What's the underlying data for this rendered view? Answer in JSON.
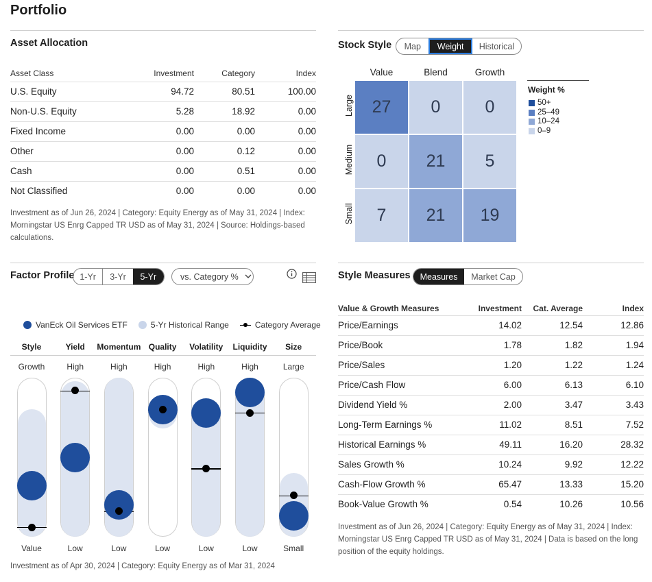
{
  "title": "Portfolio",
  "asset_allocation": {
    "heading": "Asset Allocation",
    "columns": [
      "Asset Class",
      "Investment",
      "Category",
      "Index"
    ],
    "rows": [
      {
        "label": "U.S. Equity",
        "investment": "94.72",
        "category": "80.51",
        "index": "100.00"
      },
      {
        "label": "Non-U.S. Equity",
        "investment": "5.28",
        "category": "18.92",
        "index": "0.00"
      },
      {
        "label": "Fixed Income",
        "investment": "0.00",
        "category": "0.00",
        "index": "0.00"
      },
      {
        "label": "Other",
        "investment": "0.00",
        "category": "0.12",
        "index": "0.00"
      },
      {
        "label": "Cash",
        "investment": "0.00",
        "category": "0.51",
        "index": "0.00"
      },
      {
        "label": "Not Classified",
        "investment": "0.00",
        "category": "0.00",
        "index": "0.00"
      }
    ],
    "footnote_1": "Investment as of Jun 26, 2024 | Category: Equity Energy as of May 31, 2024 | Index:",
    "footnote_2": "Morningstar US Enrg Capped TR USD as of May 31, 2024 | Source: Holdings-based",
    "footnote_3": "calculations."
  },
  "stock_style": {
    "heading": "Stock Style",
    "tabs": [
      "Map",
      "Weight",
      "Historical"
    ],
    "active_tab": "Weight",
    "col_labels": [
      "Value",
      "Blend",
      "Growth"
    ],
    "row_labels": [
      "Large",
      "Medium",
      "Small"
    ],
    "cells": [
      [
        "27",
        "0",
        "0"
      ],
      [
        "0",
        "21",
        "5"
      ],
      [
        "7",
        "21",
        "19"
      ]
    ],
    "legend_title": "Weight %",
    "legend": [
      {
        "label": "50+",
        "color": "#1f4e9c"
      },
      {
        "label": "25–49",
        "color": "#5b7fc2"
      },
      {
        "label": "10–24",
        "color": "#8fa8d6"
      },
      {
        "label": "0–9",
        "color": "#c9d5ea"
      }
    ]
  },
  "factor_profile": {
    "heading": "Factor Profile",
    "periods": [
      "1-Yr",
      "3-Yr",
      "5-Yr"
    ],
    "active_period": "5-Yr",
    "compare_select": "vs. Category %",
    "legend": {
      "fund": "VanEck Oil Services ETF",
      "range": "5-Yr Historical Range",
      "avg": "Category Average"
    },
    "factors": [
      {
        "name": "Style",
        "top": "Growth",
        "bottom": "Value",
        "fund": 0.32,
        "range": [
          0.0,
          0.8
        ],
        "avg": 0.06
      },
      {
        "name": "Yield",
        "top": "High",
        "bottom": "Low",
        "fund": 0.5,
        "range": [
          0.0,
          0.98
        ],
        "avg": 0.92
      },
      {
        "name": "Momentum",
        "top": "High",
        "bottom": "Low",
        "fund": 0.2,
        "range": [
          0.0,
          1.0
        ],
        "avg": 0.16
      },
      {
        "name": "Quality",
        "top": "High",
        "bottom": "Low",
        "fund": 0.8,
        "range": [
          0.68,
          0.88
        ],
        "avg": 0.8
      },
      {
        "name": "Volatility",
        "top": "High",
        "bottom": "Low",
        "fund": 0.78,
        "range": [
          0.0,
          0.86
        ],
        "avg": 0.43
      },
      {
        "name": "Liquidity",
        "top": "High",
        "bottom": "Low",
        "fund": 0.93,
        "range": [
          0.0,
          1.0
        ],
        "avg": 0.78
      },
      {
        "name": "Size",
        "top": "Large",
        "bottom": "Small",
        "fund": 0.13,
        "range": [
          0.0,
          0.4
        ],
        "avg": 0.26
      }
    ],
    "footnote": "Investment as of Apr 30, 2024 | Category: Equity Energy as of Mar 31, 2024",
    "colors": {
      "fund": "#1f4e9c",
      "range": "#dde4f1",
      "avg": "#000000"
    }
  },
  "style_measures": {
    "heading": "Style Measures",
    "tabs": [
      "Measures",
      "Market Cap"
    ],
    "active_tab": "Measures",
    "columns": [
      "Value & Growth Measures",
      "Investment",
      "Cat. Average",
      "Index"
    ],
    "rows": [
      {
        "label": "Price/Earnings",
        "investment": "14.02",
        "cat": "12.54",
        "index": "12.86"
      },
      {
        "label": "Price/Book",
        "investment": "1.78",
        "cat": "1.82",
        "index": "1.94"
      },
      {
        "label": "Price/Sales",
        "investment": "1.20",
        "cat": "1.22",
        "index": "1.24"
      },
      {
        "label": "Price/Cash Flow",
        "investment": "6.00",
        "cat": "6.13",
        "index": "6.10"
      },
      {
        "label": "Dividend Yield %",
        "investment": "2.00",
        "cat": "3.47",
        "index": "3.43"
      },
      {
        "label": "Long-Term Earnings %",
        "investment": "11.02",
        "cat": "8.51",
        "index": "7.52"
      },
      {
        "label": "Historical Earnings %",
        "investment": "49.11",
        "cat": "16.20",
        "index": "28.32"
      },
      {
        "label": "Sales Growth %",
        "investment": "10.24",
        "cat": "9.92",
        "index": "12.22"
      },
      {
        "label": "Cash-Flow Growth %",
        "investment": "65.47",
        "cat": "13.33",
        "index": "15.20"
      },
      {
        "label": "Book-Value Growth %",
        "investment": "0.54",
        "cat": "10.26",
        "index": "10.56"
      }
    ],
    "footnote_1": "Investment as of Jun 26, 2024 | Category: Equity Energy as of May 31, 2024 | Index:",
    "footnote_2": "Morningstar US Enrg Capped TR USD as of May 31, 2024 | Data is based on the long",
    "footnote_3": "position of the equity holdings."
  },
  "icons": {
    "info": "info-icon",
    "table": "table-view-icon",
    "dropdown": "chevron-down-icon"
  }
}
